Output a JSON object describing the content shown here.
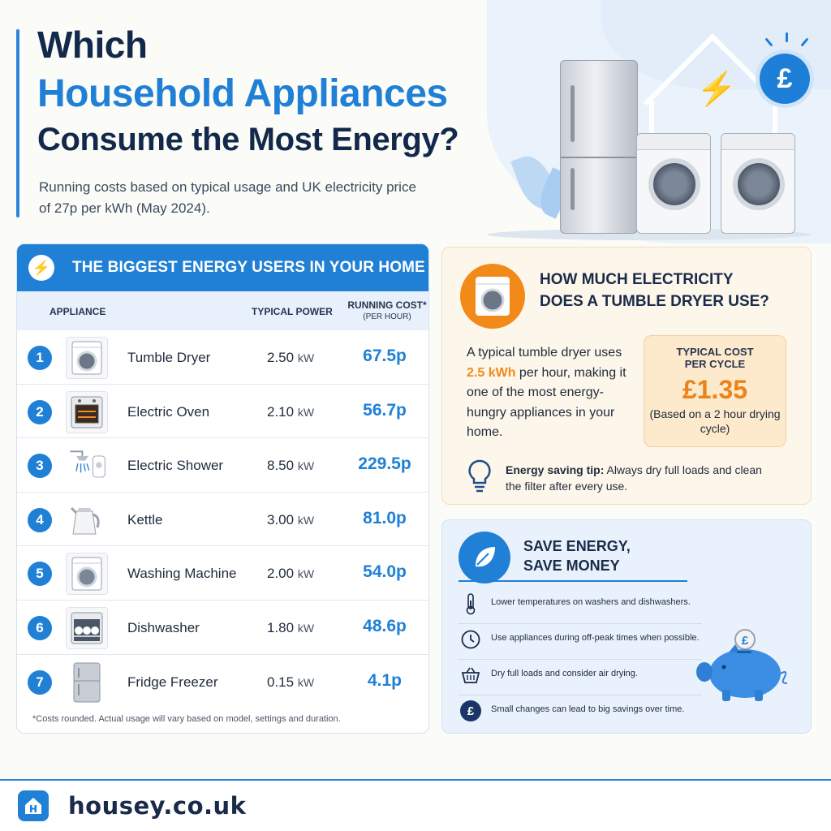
{
  "header": {
    "title_line1": "Which",
    "title_line2": "Household Appliances",
    "title_line3": "Consume the Most Energy?",
    "subtitle": "Running costs based on typical usage and UK electricity price of 27p per kWh (May 2024).",
    "pound_symbol": "£"
  },
  "table": {
    "title": "THE BIGGEST ENERGY USERS IN YOUR HOME",
    "col_appliance": "APPLIANCE",
    "col_power": "TYPICAL POWER",
    "col_cost": "RUNNING COST*",
    "col_cost_sub": "(PER HOUR)",
    "rows": [
      {
        "rank": "1",
        "name": "Tumble Dryer",
        "power": "2.50",
        "unit": "kW",
        "cost": "67.5p",
        "icon": "tumble-dryer-icon"
      },
      {
        "rank": "2",
        "name": "Electric Oven",
        "power": "2.10",
        "unit": "kW",
        "cost": "56.7p",
        "icon": "oven-icon"
      },
      {
        "rank": "3",
        "name": "Electric Shower",
        "power": "8.50",
        "unit": "kW",
        "cost": "229.5p",
        "icon": "shower-icon"
      },
      {
        "rank": "4",
        "name": "Kettle",
        "power": "3.00",
        "unit": "kW",
        "cost": "81.0p",
        "icon": "kettle-icon"
      },
      {
        "rank": "5",
        "name": "Washing Machine",
        "power": "2.00",
        "unit": "kW",
        "cost": "54.0p",
        "icon": "washing-machine-icon"
      },
      {
        "rank": "6",
        "name": "Dishwasher",
        "power": "1.80",
        "unit": "kW",
        "cost": "48.6p",
        "icon": "dishwasher-icon"
      },
      {
        "rank": "7",
        "name": "Fridge Freezer",
        "power": "0.15",
        "unit": "kW",
        "cost": "4.1p",
        "icon": "fridge-freezer-icon"
      }
    ],
    "footnote": "*Costs rounded. Actual usage will vary based on model, settings and duration."
  },
  "dryer": {
    "title_line1": "HOW MUCH ELECTRICITY",
    "title_line2": "DOES A TUMBLE DRYER USE?",
    "text_before": "A typical tumble dryer uses ",
    "text_highlight": "2.5 kWh",
    "text_after": " per hour, making it one of the most energy-hungry appliances in your home.",
    "cost_label_line1": "TYPICAL COST",
    "cost_label_line2": "PER CYCLE",
    "cost_value": "£1.35",
    "cost_note": "(Based on a 2 hour drying cycle)",
    "tip_label": "Energy saving tip:",
    "tip_text": " Always dry full loads and clean the filter after every use."
  },
  "save": {
    "title_line1": "SAVE ENERGY,",
    "title_line2": "SAVE MONEY",
    "tips": [
      {
        "text": "Lower temperatures on washers and dishwashers.",
        "icon": "thermometer-icon"
      },
      {
        "text": "Use appliances during off-peak times when possible.",
        "icon": "clock-icon"
      },
      {
        "text": "Dry full loads and consider air drying.",
        "icon": "basket-icon"
      },
      {
        "text": "Small changes can lead to big savings over time.",
        "icon": "pound-icon"
      }
    ],
    "coin_symbol": "£"
  },
  "footer": {
    "site": "housey.co.uk"
  },
  "colors": {
    "brand_blue": "#1f80d6",
    "navy": "#13294b",
    "orange": "#f28a1a"
  }
}
